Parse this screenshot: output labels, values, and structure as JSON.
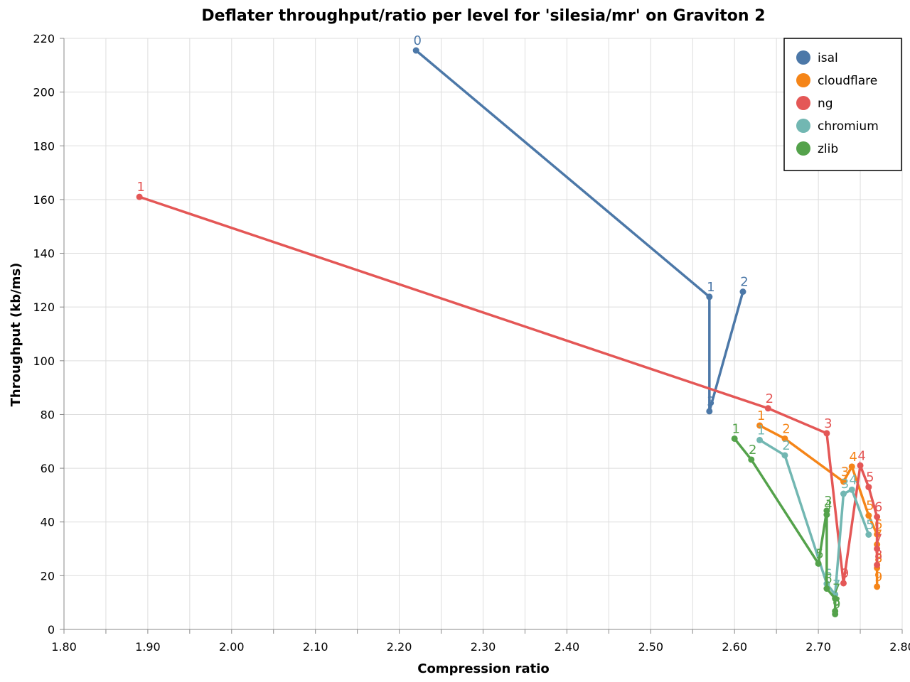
{
  "chart_data": {
    "type": "line",
    "title": "Deflater throughput/ratio per level for 'silesia/mr' on Graviton 2",
    "xlabel": "Compression ratio",
    "ylabel": "Throughput (kb/ms)",
    "xlim": [
      1.8,
      2.8
    ],
    "ylim": [
      0,
      220
    ],
    "xticks": [
      "1.80",
      "1.90",
      "2.00",
      "2.10",
      "2.20",
      "2.30",
      "2.40",
      "2.50",
      "2.60",
      "2.70",
      "2.80"
    ],
    "yticks": [
      "0",
      "20",
      "40",
      "60",
      "80",
      "100",
      "120",
      "140",
      "160",
      "180",
      "200",
      "220"
    ],
    "grid": true,
    "legend_position": "top-right",
    "series": [
      {
        "name": "isal",
        "color": "#4c78a8",
        "points": [
          {
            "level": "0",
            "x": 2.22,
            "y": 215.5
          },
          {
            "level": "1",
            "x": 2.57,
            "y": 123.8
          },
          {
            "level": "3",
            "x": 2.57,
            "y": 81.2
          },
          {
            "level": "2",
            "x": 2.61,
            "y": 125.7
          }
        ]
      },
      {
        "name": "cloudflare",
        "color": "#f58518",
        "points": [
          {
            "level": "1",
            "x": 2.63,
            "y": 75.9
          },
          {
            "level": "2",
            "x": 2.66,
            "y": 71.0
          },
          {
            "level": "3",
            "x": 2.73,
            "y": 55.0
          },
          {
            "level": "4",
            "x": 2.74,
            "y": 60.6
          },
          {
            "level": "5",
            "x": 2.76,
            "y": 42.4
          },
          {
            "level": "6",
            "x": 2.77,
            "y": 35.4
          },
          {
            "level": "7",
            "x": 2.77,
            "y": 31.6
          },
          {
            "level": "8",
            "x": 2.77,
            "y": 22.9
          },
          {
            "level": "9",
            "x": 2.77,
            "y": 15.9
          }
        ]
      },
      {
        "name": "ng",
        "color": "#e45756",
        "points": [
          {
            "level": "1",
            "x": 1.89,
            "y": 161.0
          },
          {
            "level": "2",
            "x": 2.64,
            "y": 82.3
          },
          {
            "level": "3",
            "x": 2.71,
            "y": 73.0
          },
          {
            "level": "9",
            "x": 2.73,
            "y": 17.2
          },
          {
            "level": "4",
            "x": 2.75,
            "y": 61.0
          },
          {
            "level": "5",
            "x": 2.76,
            "y": 53.0
          },
          {
            "level": "6",
            "x": 2.77,
            "y": 41.9
          },
          {
            "level": "7",
            "x": 2.77,
            "y": 30.0
          },
          {
            "level": "8",
            "x": 2.77,
            "y": 24.0
          }
        ]
      },
      {
        "name": "chromium",
        "color": "#72b7b2",
        "points": [
          {
            "level": "1",
            "x": 2.63,
            "y": 70.5
          },
          {
            "level": "2",
            "x": 2.66,
            "y": 64.8
          },
          {
            "level": "6",
            "x": 2.71,
            "y": 17.0
          },
          {
            "level": "7",
            "x": 2.72,
            "y": 13.0
          },
          {
            "level": "3",
            "x": 2.73,
            "y": 50.5
          },
          {
            "level": "4",
            "x": 2.74,
            "y": 52.0
          },
          {
            "level": "5",
            "x": 2.76,
            "y": 35.3
          }
        ]
      },
      {
        "name": "zlib",
        "color": "#54a24b",
        "points": [
          {
            "level": "1",
            "x": 2.6,
            "y": 71.0
          },
          {
            "level": "2",
            "x": 2.62,
            "y": 63.2
          },
          {
            "level": "5",
            "x": 2.7,
            "y": 24.5
          },
          {
            "level": "3",
            "x": 2.71,
            "y": 44.2
          },
          {
            "level": "4",
            "x": 2.71,
            "y": 42.7
          },
          {
            "level": "6",
            "x": 2.71,
            "y": 15.2
          },
          {
            "level": "7",
            "x": 2.72,
            "y": 11.5
          },
          {
            "level": "8",
            "x": 2.72,
            "y": 6.8
          },
          {
            "level": "9",
            "x": 2.72,
            "y": 5.7
          }
        ]
      }
    ]
  }
}
